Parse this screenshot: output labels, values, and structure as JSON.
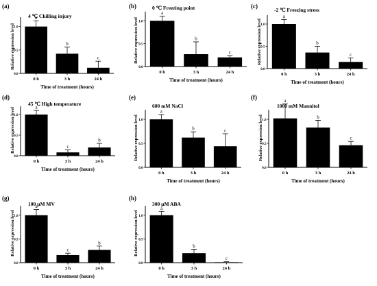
{
  "shared": {
    "ylabel": "Relative expression level",
    "xlabel": "Time of treatment (hours)",
    "yticks": [
      "0.0",
      "0.5",
      "1.0"
    ],
    "bar_color": "#000000"
  },
  "chart_data": [
    {
      "panel": "(a)",
      "title": "4 ℃ Chilling injury",
      "type": "bar",
      "categories": [
        "0 h",
        "3 h",
        "24 h"
      ],
      "values": [
        1.0,
        0.42,
        0.12
      ],
      "errors": [
        0.12,
        0.14,
        0.14
      ],
      "letters": [
        "a",
        "b",
        "c"
      ],
      "ylim": [
        0,
        1.2
      ]
    },
    {
      "panel": "(b)",
      "title": "0 ℃ Freezing point",
      "type": "bar",
      "categories": [
        "0 h",
        "3 h",
        "24 h"
      ],
      "values": [
        1.0,
        0.27,
        0.2
      ],
      "errors": [
        0.1,
        0.27,
        0.04
      ],
      "letters": [
        "a",
        "b",
        "c"
      ],
      "ylim": [
        0,
        1.2
      ]
    },
    {
      "panel": "(c)",
      "title": "-2 ℃ Freezing stress",
      "type": "bar",
      "categories": [
        "0 h",
        "3 h",
        "24 h"
      ],
      "values": [
        1.0,
        0.36,
        0.15
      ],
      "errors": [
        0.1,
        0.14,
        0.09
      ],
      "letters": [
        "a",
        "b",
        "c"
      ],
      "ylim": [
        0,
        1.2
      ]
    },
    {
      "panel": "(d)",
      "title": "45 ℃ High temperature",
      "type": "bar",
      "categories": [
        "0 h",
        "3 h",
        "24 h"
      ],
      "values": [
        1.0,
        0.08,
        0.2
      ],
      "errors": [
        0.1,
        0.06,
        0.1
      ],
      "letters": [
        "a",
        "c",
        "b"
      ],
      "ylim": [
        0,
        1.2
      ]
    },
    {
      "panel": "(e)",
      "title": "600 mM NaCl",
      "type": "bar",
      "categories": [
        "0 h",
        "3 h",
        "24 h"
      ],
      "values": [
        1.0,
        0.62,
        0.44
      ],
      "errors": [
        0.1,
        0.12,
        0.26
      ],
      "letters": [
        "a",
        "b",
        "c"
      ],
      "ylim": [
        0,
        1.2
      ]
    },
    {
      "panel": "(f)",
      "title": "1000 mM Mannitol",
      "type": "bar",
      "categories": [
        "0 h",
        "3 h",
        "24 h"
      ],
      "values": [
        1.02,
        0.83,
        0.46
      ],
      "errors": [
        0.3,
        0.15,
        0.08
      ],
      "letters": [
        "a",
        "b",
        "c"
      ],
      "ylim": [
        0,
        1.2
      ]
    },
    {
      "panel": "(g)",
      "title": "100 µM MV",
      "type": "bar",
      "categories": [
        "0 h",
        "3 h",
        "24 h"
      ],
      "values": [
        1.0,
        0.16,
        0.27
      ],
      "errors": [
        0.12,
        0.04,
        0.08
      ],
      "letters": [
        "a",
        "c",
        "b"
      ],
      "ylim": [
        0,
        1.2
      ]
    },
    {
      "panel": "(h)",
      "title": "300 µM ABA",
      "type": "bar",
      "categories": [
        "0 h",
        "3 h",
        "24 h"
      ],
      "values": [
        1.0,
        0.2,
        0.01
      ],
      "errors": [
        0.08,
        0.08,
        0.01
      ],
      "letters": [
        "a",
        "b",
        "c"
      ],
      "ylim": [
        0,
        1.2
      ]
    }
  ]
}
